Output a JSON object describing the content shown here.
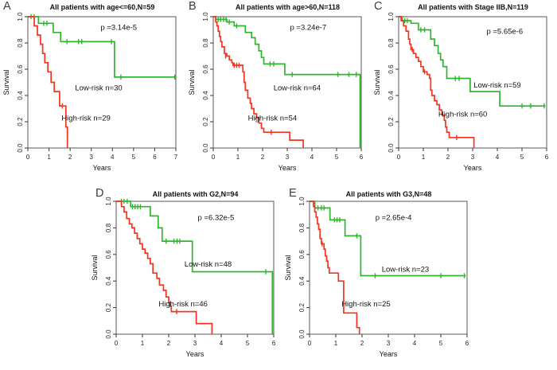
{
  "figure": {
    "background": "#ffffff",
    "description": "Kaplan-Meier survival curves, five panels A-E, low-risk vs high-risk groups"
  },
  "colors": {
    "low_risk": "#2eb62e",
    "high_risk": "#f5331f",
    "box": "#5a5a5a",
    "tick": "#333333",
    "text": "#111111"
  },
  "chart_data": [
    {
      "type": "line",
      "curve_type": "step",
      "panel_label": "A",
      "title": "All patients with age<=60,N=59",
      "p_value_text": "p =3.14e-5",
      "p_value_pos": [
        4.3,
        0.9
      ],
      "xlabel": "Years",
      "ylabel": "Survival",
      "xlim": [
        0,
        7
      ],
      "ylim": [
        0,
        1
      ],
      "xticks": [
        0,
        1,
        2,
        3,
        4,
        5,
        6,
        7
      ],
      "yticks": [
        0.0,
        0.2,
        0.4,
        0.6,
        0.8,
        1.0
      ],
      "series": [
        {
          "risk": "low",
          "label": "Low-risk n=30",
          "label_pos": [
            3.35,
            0.44
          ],
          "steps": [
            [
              0,
              1.0
            ],
            [
              0.5,
              0.95
            ],
            [
              1.2,
              0.88
            ],
            [
              1.55,
              0.81
            ],
            [
              4.1,
              0.54
            ],
            [
              7.0,
              0.54
            ]
          ],
          "censor_marks": [
            [
              0.15,
              1.0
            ],
            [
              0.3,
              1.0
            ],
            [
              0.75,
              0.95
            ],
            [
              0.9,
              0.95
            ],
            [
              1.85,
              0.81
            ],
            [
              2.4,
              0.81
            ],
            [
              2.55,
              0.81
            ],
            [
              3.95,
              0.81
            ],
            [
              4.4,
              0.54
            ],
            [
              6.95,
              0.54
            ]
          ]
        },
        {
          "risk": "high",
          "label": "High-risk n=29",
          "label_pos": [
            2.75,
            0.21
          ],
          "steps": [
            [
              0,
              1.0
            ],
            [
              0.3,
              0.93
            ],
            [
              0.45,
              0.86
            ],
            [
              0.6,
              0.79
            ],
            [
              0.7,
              0.72
            ],
            [
              0.8,
              0.65
            ],
            [
              0.95,
              0.58
            ],
            [
              1.1,
              0.5
            ],
            [
              1.25,
              0.43
            ],
            [
              1.5,
              0.32
            ],
            [
              1.8,
              0.16
            ],
            [
              1.87,
              0.0
            ]
          ],
          "censor_marks": [
            [
              1.63,
              0.32
            ]
          ]
        }
      ]
    },
    {
      "type": "line",
      "curve_type": "step",
      "panel_label": "B",
      "title": "All patients with age>60,N=118",
      "p_value_text": "p =3.24e-7",
      "p_value_pos": [
        3.85,
        0.9
      ],
      "xlabel": "Years",
      "ylabel": "Survival",
      "xlim": [
        0,
        6
      ],
      "ylim": [
        0,
        1
      ],
      "xticks": [
        0,
        1,
        2,
        3,
        4,
        5,
        6
      ],
      "yticks": [
        0.0,
        0.2,
        0.4,
        0.6,
        0.8,
        1.0
      ],
      "series": [
        {
          "risk": "low",
          "label": "Low-risk n=64",
          "label_pos": [
            3.4,
            0.44
          ],
          "steps": [
            [
              0,
              1.0
            ],
            [
              0.1,
              0.98
            ],
            [
              0.55,
              0.96
            ],
            [
              0.85,
              0.93
            ],
            [
              1.3,
              0.88
            ],
            [
              1.55,
              0.84
            ],
            [
              1.7,
              0.79
            ],
            [
              1.85,
              0.74
            ],
            [
              1.95,
              0.69
            ],
            [
              2.05,
              0.64
            ],
            [
              2.9,
              0.56
            ],
            [
              5.95,
              0.56
            ],
            [
              5.95,
              0.0
            ]
          ],
          "censor_marks": [
            [
              0.2,
              0.98
            ],
            [
              0.3,
              0.98
            ],
            [
              0.42,
              0.98
            ],
            [
              0.52,
              0.98
            ],
            [
              0.65,
              0.96
            ],
            [
              0.95,
              0.93
            ],
            [
              2.3,
              0.64
            ],
            [
              2.45,
              0.64
            ],
            [
              3.2,
              0.56
            ],
            [
              5.05,
              0.56
            ],
            [
              5.5,
              0.56
            ],
            [
              5.8,
              0.56
            ]
          ]
        },
        {
          "risk": "high",
          "label": "High-risk n=54",
          "label_pos": [
            2.4,
            0.21
          ],
          "steps": [
            [
              0,
              1.0
            ],
            [
              0.1,
              0.96
            ],
            [
              0.15,
              0.93
            ],
            [
              0.2,
              0.89
            ],
            [
              0.25,
              0.85
            ],
            [
              0.3,
              0.81
            ],
            [
              0.35,
              0.77
            ],
            [
              0.45,
              0.72
            ],
            [
              0.55,
              0.7
            ],
            [
              0.65,
              0.67
            ],
            [
              0.75,
              0.65
            ],
            [
              0.8,
              0.63
            ],
            [
              1.2,
              0.58
            ],
            [
              1.25,
              0.5
            ],
            [
              1.3,
              0.44
            ],
            [
              1.4,
              0.38
            ],
            [
              1.5,
              0.34
            ],
            [
              1.55,
              0.3
            ],
            [
              1.65,
              0.26
            ],
            [
              1.75,
              0.23
            ],
            [
              1.85,
              0.19
            ],
            [
              1.95,
              0.15
            ],
            [
              2.05,
              0.12
            ],
            [
              3.1,
              0.06
            ],
            [
              3.65,
              0.0
            ]
          ],
          "censor_marks": [
            [
              0.5,
              0.7
            ],
            [
              0.85,
              0.63
            ],
            [
              0.95,
              0.63
            ],
            [
              1.05,
              0.63
            ],
            [
              2.35,
              0.12
            ]
          ]
        }
      ]
    },
    {
      "type": "line",
      "curve_type": "step",
      "panel_label": "C",
      "title": "All patients with Stage IIB,N=119",
      "p_value_text": "p =5.65e-6",
      "p_value_pos": [
        4.3,
        0.87
      ],
      "xlabel": "Years",
      "ylabel": "Survival",
      "xlim": [
        0,
        6
      ],
      "ylim": [
        0,
        1
      ],
      "xticks": [
        0,
        1,
        2,
        3,
        4,
        5,
        6
      ],
      "yticks": [
        0.0,
        0.2,
        0.4,
        0.6,
        0.8,
        1.0
      ],
      "series": [
        {
          "risk": "low",
          "label": "Low-risk n=59",
          "label_pos": [
            4.0,
            0.46
          ],
          "steps": [
            [
              0,
              1.0
            ],
            [
              0.15,
              0.97
            ],
            [
              0.5,
              0.95
            ],
            [
              0.8,
              0.9
            ],
            [
              1.3,
              0.83
            ],
            [
              1.45,
              0.78
            ],
            [
              1.6,
              0.72
            ],
            [
              1.7,
              0.67
            ],
            [
              1.8,
              0.62
            ],
            [
              1.95,
              0.53
            ],
            [
              2.9,
              0.43
            ],
            [
              4.1,
              0.32
            ],
            [
              5.95,
              0.32
            ]
          ],
          "censor_marks": [
            [
              0.25,
              0.97
            ],
            [
              0.35,
              0.97
            ],
            [
              0.9,
              0.9
            ],
            [
              1.05,
              0.9
            ],
            [
              2.3,
              0.53
            ],
            [
              2.45,
              0.53
            ],
            [
              5.0,
              0.32
            ],
            [
              5.35,
              0.32
            ],
            [
              5.9,
              0.32
            ]
          ]
        },
        {
          "risk": "high",
          "label": "High-risk n=60",
          "label_pos": [
            2.6,
            0.24
          ],
          "steps": [
            [
              0,
              1.0
            ],
            [
              0.1,
              0.97
            ],
            [
              0.2,
              0.93
            ],
            [
              0.3,
              0.89
            ],
            [
              0.4,
              0.83
            ],
            [
              0.45,
              0.79
            ],
            [
              0.5,
              0.75
            ],
            [
              0.6,
              0.72
            ],
            [
              0.7,
              0.69
            ],
            [
              0.8,
              0.66
            ],
            [
              0.9,
              0.62
            ],
            [
              1.0,
              0.58
            ],
            [
              1.15,
              0.56
            ],
            [
              1.25,
              0.53
            ],
            [
              1.3,
              0.44
            ],
            [
              1.35,
              0.4
            ],
            [
              1.45,
              0.36
            ],
            [
              1.55,
              0.33
            ],
            [
              1.65,
              0.29
            ],
            [
              1.75,
              0.25
            ],
            [
              1.85,
              0.21
            ],
            [
              1.9,
              0.16
            ],
            [
              1.95,
              0.12
            ],
            [
              2.05,
              0.08
            ],
            [
              3.05,
              0.08
            ],
            [
              3.05,
              0.0
            ]
          ],
          "censor_marks": [
            [
              0.55,
              0.75
            ],
            [
              1.05,
              0.58
            ],
            [
              2.35,
              0.08
            ]
          ]
        }
      ]
    },
    {
      "type": "line",
      "curve_type": "step",
      "panel_label": "D",
      "title": "All patients with G2,N=94",
      "p_value_text": "p =6.32e-5",
      "p_value_pos": [
        3.8,
        0.86
      ],
      "xlabel": "Years",
      "ylabel": "Survival",
      "xlim": [
        0,
        6
      ],
      "ylim": [
        0,
        1
      ],
      "xticks": [
        0,
        1,
        2,
        3,
        4,
        5,
        6
      ],
      "yticks": [
        0.0,
        0.2,
        0.4,
        0.6,
        0.8,
        1.0
      ],
      "series": [
        {
          "risk": "low",
          "label": "Low-risk n=48",
          "label_pos": [
            3.5,
            0.51
          ],
          "steps": [
            [
              0,
              1.0
            ],
            [
              0.55,
              0.96
            ],
            [
              1.3,
              0.89
            ],
            [
              1.6,
              0.8
            ],
            [
              1.75,
              0.7
            ],
            [
              2.9,
              0.47
            ],
            [
              5.95,
              0.47
            ],
            [
              5.95,
              0.0
            ]
          ],
          "censor_marks": [
            [
              0.2,
              1.0
            ],
            [
              0.3,
              1.0
            ],
            [
              0.42,
              1.0
            ],
            [
              0.62,
              0.96
            ],
            [
              0.72,
              0.96
            ],
            [
              0.82,
              0.96
            ],
            [
              0.92,
              0.96
            ],
            [
              1.9,
              0.7
            ],
            [
              2.2,
              0.7
            ],
            [
              2.32,
              0.7
            ],
            [
              2.42,
              0.7
            ],
            [
              5.7,
              0.47
            ]
          ]
        },
        {
          "risk": "high",
          "label": "High-risk n=46",
          "label_pos": [
            2.55,
            0.21
          ],
          "steps": [
            [
              0,
              1.0
            ],
            [
              0.2,
              0.96
            ],
            [
              0.3,
              0.92
            ],
            [
              0.4,
              0.87
            ],
            [
              0.5,
              0.83
            ],
            [
              0.6,
              0.8
            ],
            [
              0.7,
              0.76
            ],
            [
              0.8,
              0.72
            ],
            [
              0.9,
              0.68
            ],
            [
              1.0,
              0.64
            ],
            [
              1.1,
              0.61
            ],
            [
              1.2,
              0.57
            ],
            [
              1.3,
              0.53
            ],
            [
              1.4,
              0.46
            ],
            [
              1.55,
              0.42
            ],
            [
              1.65,
              0.37
            ],
            [
              1.8,
              0.33
            ],
            [
              1.9,
              0.28
            ],
            [
              2.0,
              0.24
            ],
            [
              2.05,
              0.21
            ],
            [
              2.1,
              0.17
            ],
            [
              3.05,
              0.08
            ],
            [
              3.65,
              0.0
            ]
          ],
          "censor_marks": [
            [
              2.3,
              0.17
            ]
          ]
        }
      ]
    },
    {
      "type": "line",
      "curve_type": "step",
      "panel_label": "E",
      "title": "All patients with G3,N=48",
      "p_value_text": "p =2.65e-4",
      "p_value_pos": [
        3.2,
        0.86
      ],
      "xlabel": "Years",
      "ylabel": "Survival",
      "xlim": [
        0,
        6
      ],
      "ylim": [
        0,
        1
      ],
      "xticks": [
        0,
        1,
        2,
        3,
        4,
        5,
        6
      ],
      "yticks": [
        0.0,
        0.2,
        0.4,
        0.6,
        0.8,
        1.0
      ],
      "series": [
        {
          "risk": "low",
          "label": "Low-risk n=23",
          "label_pos": [
            3.65,
            0.47
          ],
          "steps": [
            [
              0,
              1.0
            ],
            [
              0.2,
              0.95
            ],
            [
              0.78,
              0.86
            ],
            [
              1.35,
              0.74
            ],
            [
              1.95,
              0.44
            ],
            [
              5.95,
              0.44
            ]
          ],
          "censor_marks": [
            [
              0.32,
              0.95
            ],
            [
              0.45,
              0.95
            ],
            [
              0.55,
              0.95
            ],
            [
              0.95,
              0.86
            ],
            [
              1.05,
              0.86
            ],
            [
              1.15,
              0.86
            ],
            [
              1.8,
              0.74
            ],
            [
              2.5,
              0.44
            ],
            [
              5.0,
              0.44
            ],
            [
              5.9,
              0.44
            ]
          ]
        },
        {
          "risk": "high",
          "label": "High-risk n=25",
          "label_pos": [
            2.15,
            0.21
          ],
          "steps": [
            [
              0,
              1.0
            ],
            [
              0.15,
              0.96
            ],
            [
              0.2,
              0.92
            ],
            [
              0.25,
              0.88
            ],
            [
              0.3,
              0.83
            ],
            [
              0.35,
              0.79
            ],
            [
              0.4,
              0.72
            ],
            [
              0.45,
              0.68
            ],
            [
              0.55,
              0.64
            ],
            [
              0.6,
              0.59
            ],
            [
              0.65,
              0.55
            ],
            [
              0.7,
              0.5
            ],
            [
              0.75,
              0.46
            ],
            [
              1.1,
              0.4
            ],
            [
              1.3,
              0.16
            ],
            [
              1.8,
              0.05
            ],
            [
              1.9,
              0.0
            ]
          ],
          "censor_marks": [
            [
              0.48,
              0.68
            ]
          ]
        }
      ]
    }
  ]
}
